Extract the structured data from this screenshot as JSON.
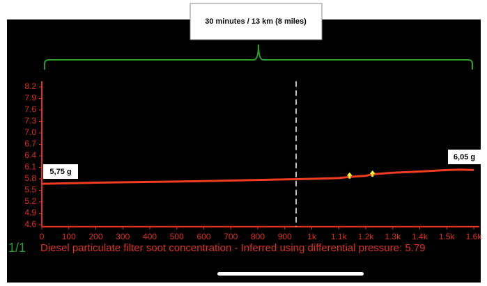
{
  "chart_data": {
    "type": "line",
    "header": "30 minutes  /  13 km  (8 miles)",
    "footer": "Diesel particulate filter soot concentration  -  Inferred using differential pressure: 5.79",
    "page": "1/1",
    "start_label": "5,75 g",
    "end_label": "6,05 g",
    "x": [
      0,
      200,
      400,
      600,
      800,
      942,
      1000,
      1100,
      1140,
      1200,
      1225,
      1300,
      1400,
      1500,
      1550,
      1600
    ],
    "series": [
      {
        "color": "#f03c20",
        "values": [
          5.67,
          5.7,
          5.72,
          5.74,
          5.77,
          5.79,
          5.8,
          5.82,
          5.85,
          5.88,
          5.92,
          5.96,
          5.99,
          6.03,
          6.04,
          6.03
        ]
      }
    ],
    "cursor_x": 942,
    "event_markers": {
      "x": [
        1140,
        1225
      ],
      "y": [
        5.88,
        5.93
      ],
      "color": "#ffff33"
    },
    "xlim": [
      0,
      1620
    ],
    "ylim": [
      4.55,
      8.35
    ],
    "xticks": [
      0,
      100,
      200,
      300,
      400,
      500,
      600,
      700,
      800,
      900,
      {
        "value": 1000,
        "label": "1k"
      },
      {
        "value": 1100,
        "label": "1.1k"
      },
      {
        "value": 1200,
        "label": "1.2k"
      },
      {
        "value": 1300,
        "label": "1.3k"
      },
      {
        "value": 1400,
        "label": "1.4k"
      },
      {
        "value": 1500,
        "label": "1.5k"
      },
      {
        "value": 1600,
        "label": "1.6k"
      }
    ],
    "yticks": [
      4.6,
      4.9,
      5.2,
      5.5,
      5.8,
      6.1,
      6.4,
      6.7,
      {
        "value": 7,
        "label": "7.0"
      },
      7.3,
      7.6,
      7.9,
      8.2
    ],
    "axis_color": "#e0301e",
    "bracket_color": "#2aa02a"
  }
}
